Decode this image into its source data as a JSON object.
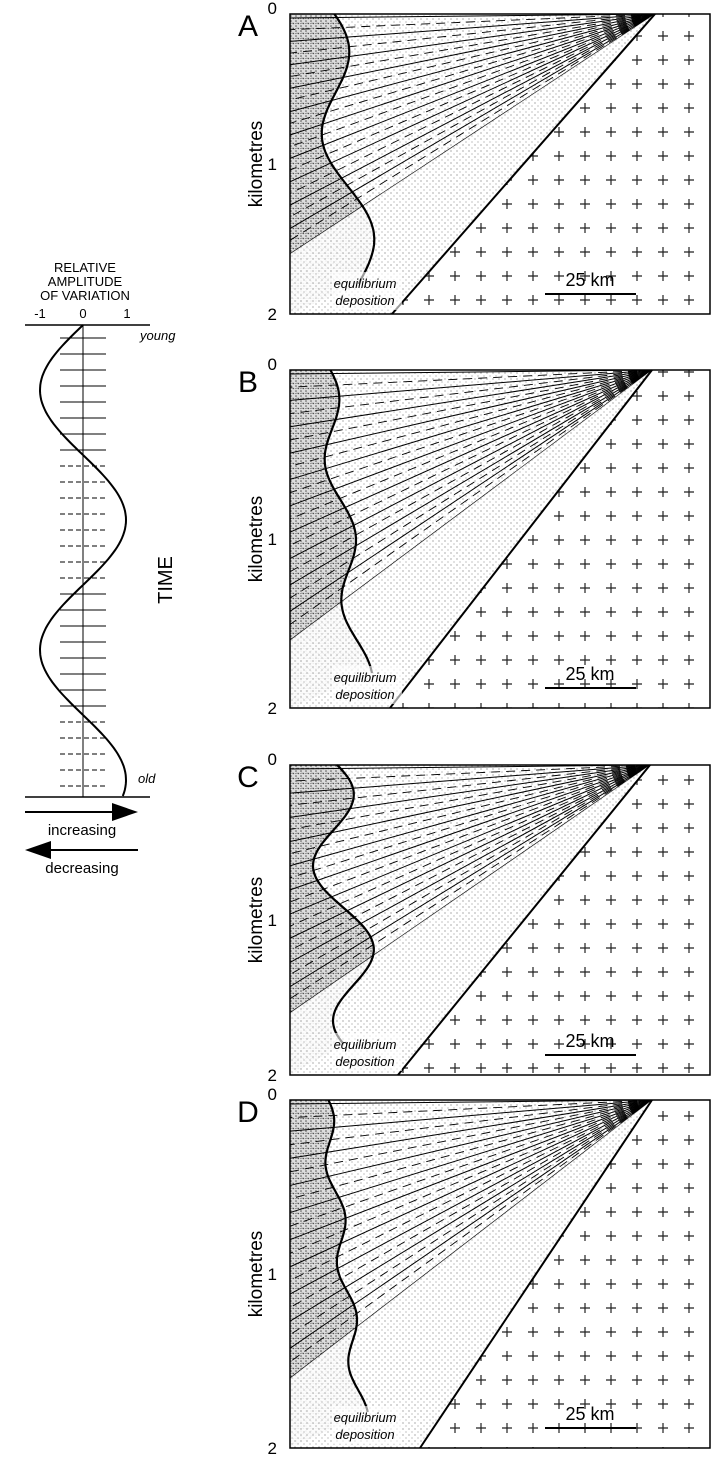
{
  "legend": {
    "title": [
      "RELATIVE",
      "AMPLITUDE",
      "OF VARIATION"
    ],
    "ticks": [
      "-1",
      "0",
      "1"
    ],
    "top_label": "young",
    "bottom_label": "old",
    "axis_label": "TIME",
    "arrows": [
      "increasing",
      "decreasing"
    ]
  },
  "panels": [
    {
      "label": "A",
      "axis_label": "kilometres",
      "ticks": [
        "0",
        "1",
        "2"
      ],
      "annotation": [
        "equilibrium",
        "deposition"
      ],
      "scale": "25 km"
    },
    {
      "label": "B",
      "axis_label": "kilometres",
      "ticks": [
        "0",
        "1",
        "2"
      ],
      "annotation": [
        "equilibrium",
        "deposition"
      ],
      "scale": "25 km"
    },
    {
      "label": "C",
      "axis_label": "kilometres",
      "ticks": [
        "0",
        "1",
        "2"
      ],
      "annotation": [
        "equilibrium",
        "deposition"
      ],
      "scale": "25 km"
    },
    {
      "label": "D",
      "axis_label": "kilometres",
      "ticks": [
        "0",
        "1",
        "2"
      ],
      "annotation": [
        "equilibrium",
        "deposition"
      ],
      "scale": "25 km"
    }
  ]
}
